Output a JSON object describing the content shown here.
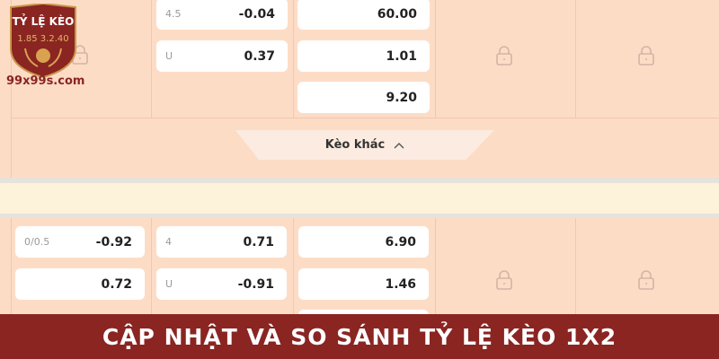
{
  "logo": {
    "title": "TỶ LỆ KÈO",
    "numbers": "1.85 3.2.40",
    "site": "99x99s.com"
  },
  "top": {
    "handicap": [
      {
        "label": "4.5",
        "value": "-0.04"
      },
      {
        "label": "U",
        "value": "0.37"
      }
    ],
    "x12": [
      "60.00",
      "1.01",
      "9.20"
    ]
  },
  "more_button": {
    "label": "Kèo khác",
    "icon": "chevron-up-icon"
  },
  "bottom": {
    "asian": [
      {
        "label": "0/0.5",
        "value": "-0.92"
      },
      {
        "label": "",
        "value": "0.72"
      }
    ],
    "overunder": [
      {
        "label": "4",
        "value": "0.71"
      },
      {
        "label": "U",
        "value": "-0.91"
      }
    ],
    "x12": [
      "6.90",
      "1.46"
    ]
  },
  "banner": {
    "text": "CẬP NHẬT VÀ SO SÁNH TỶ LỆ KÈO 1X2"
  },
  "colors": {
    "background": "#fddcc6",
    "banner": "#8a2522",
    "band": "#fdf3da"
  }
}
